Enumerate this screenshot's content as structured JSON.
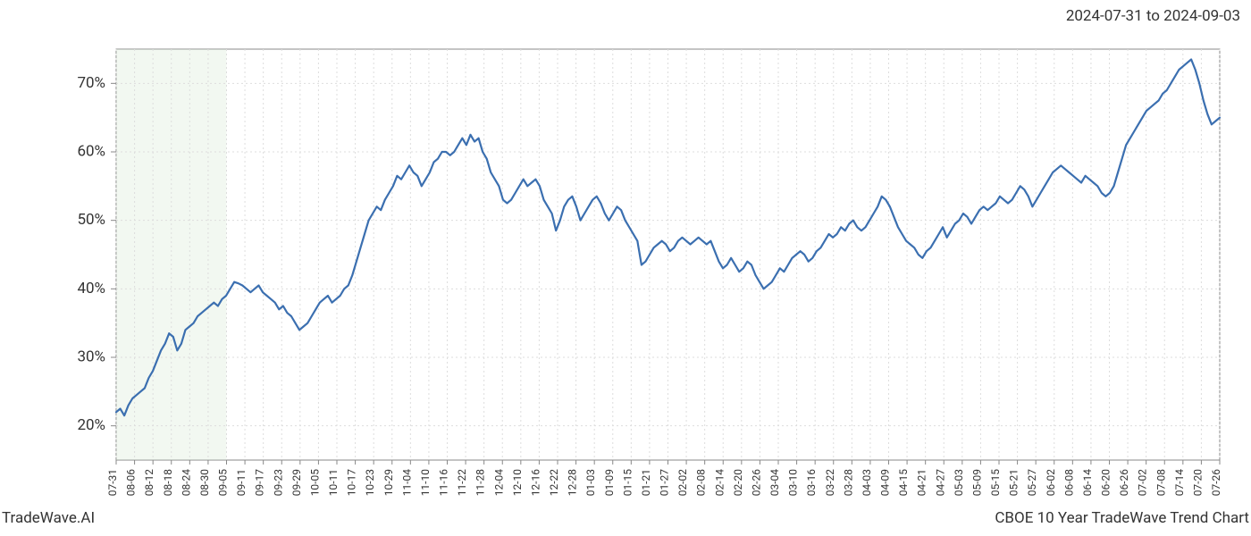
{
  "header": {
    "date_range": "2024-07-31 to 2024-09-03"
  },
  "footer": {
    "left": "TradeWave.AI",
    "right": "CBOE 10 Year TradeWave Trend Chart"
  },
  "chart": {
    "type": "line",
    "background_color": "#ffffff",
    "line_color": "#3b6fb0",
    "line_width": 2.2,
    "grid_color": "#dddddd",
    "axis_color": "#888888",
    "highlight_band_color": "#d4e8d0",
    "highlight_band_opacity": 0.55,
    "ylim": [
      15,
      75
    ],
    "ytick_step": 10,
    "y_ticks": [
      20,
      30,
      40,
      50,
      60,
      70
    ],
    "y_tick_suffix": "%",
    "y_label_fontsize": 17,
    "x_label_fontsize": 12,
    "x_labels": [
      "07-31",
      "08-06",
      "08-12",
      "08-18",
      "08-24",
      "08-30",
      "09-05",
      "09-11",
      "09-17",
      "09-23",
      "09-29",
      "10-05",
      "10-11",
      "10-17",
      "10-23",
      "10-29",
      "11-04",
      "11-10",
      "11-16",
      "11-22",
      "11-28",
      "12-04",
      "12-10",
      "12-16",
      "12-22",
      "12-28",
      "01-03",
      "01-09",
      "01-15",
      "01-21",
      "01-27",
      "02-02",
      "02-08",
      "02-14",
      "02-20",
      "02-26",
      "03-04",
      "03-10",
      "03-16",
      "03-22",
      "03-28",
      "04-03",
      "04-09",
      "04-15",
      "04-21",
      "04-27",
      "05-03",
      "05-09",
      "05-15",
      "05-21",
      "05-27",
      "06-02",
      "06-08",
      "06-14",
      "06-20",
      "06-26",
      "07-02",
      "07-08",
      "07-14",
      "07-20",
      "07-26"
    ],
    "highlight_band": {
      "start_index": 0,
      "end_index": 6
    },
    "values": [
      22,
      22.5,
      21.5,
      23,
      24,
      24.5,
      25,
      25.5,
      27,
      28,
      29.5,
      31,
      32,
      33.5,
      33,
      31,
      32,
      34,
      34.5,
      35,
      36,
      36.5,
      37,
      37.5,
      38,
      37.5,
      38.5,
      39,
      40,
      41,
      40.8,
      40.5,
      40,
      39.5,
      40,
      40.5,
      39.5,
      39,
      38.5,
      38,
      37,
      37.5,
      36.5,
      36,
      35,
      34,
      34.5,
      35,
      36,
      37,
      38,
      38.5,
      39,
      38,
      38.5,
      39,
      40,
      40.5,
      42,
      44,
      46,
      48,
      50,
      51,
      52,
      51.5,
      53,
      54,
      55,
      56.5,
      56,
      57,
      58,
      57,
      56.5,
      55,
      56,
      57,
      58.5,
      59,
      60,
      60,
      59.5,
      60,
      61,
      62,
      61,
      62.5,
      61.5,
      62,
      60,
      59,
      57,
      56,
      55,
      53,
      52.5,
      53,
      54,
      55,
      56,
      55,
      55.5,
      56,
      55,
      53,
      52,
      51,
      48.5,
      50,
      52,
      53,
      53.5,
      52,
      50,
      51,
      52,
      53,
      53.5,
      52.5,
      51,
      50,
      51,
      52,
      51.5,
      50,
      49,
      48,
      47,
      43.5,
      44,
      45,
      46,
      46.5,
      47,
      46.5,
      45.5,
      46,
      47,
      47.5,
      47,
      46.5,
      47,
      47.5,
      47,
      46.5,
      47,
      45.5,
      44,
      43,
      43.5,
      44.5,
      43.5,
      42.5,
      43,
      44,
      43.5,
      42,
      41,
      40,
      40.5,
      41,
      42,
      43,
      42.5,
      43.5,
      44.5,
      45,
      45.5,
      45,
      44,
      44.5,
      45.5,
      46,
      47,
      48,
      47.5,
      48,
      49,
      48.5,
      49.5,
      50,
      49,
      48.5,
      49,
      50,
      51,
      52,
      53.5,
      53,
      52,
      50.5,
      49,
      48,
      47,
      46.5,
      46,
      45,
      44.5,
      45.5,
      46,
      47,
      48,
      49,
      47.5,
      48.5,
      49.5,
      50,
      51,
      50.5,
      49.5,
      50.5,
      51.5,
      52,
      51.5,
      52,
      52.5,
      53.5,
      53,
      52.5,
      53,
      54,
      55,
      54.5,
      53.5,
      52,
      53,
      54,
      55,
      56,
      57,
      57.5,
      58,
      57.5,
      57,
      56.5,
      56,
      55.5,
      56.5,
      56,
      55.5,
      55,
      54,
      53.5,
      54,
      55,
      57,
      59,
      61,
      62,
      63,
      64,
      65,
      66,
      66.5,
      67,
      67.5,
      68.5,
      69,
      70,
      71,
      72,
      72.5,
      73,
      73.5,
      72,
      70,
      67.5,
      65.5,
      64,
      64.5,
      65
    ]
  }
}
